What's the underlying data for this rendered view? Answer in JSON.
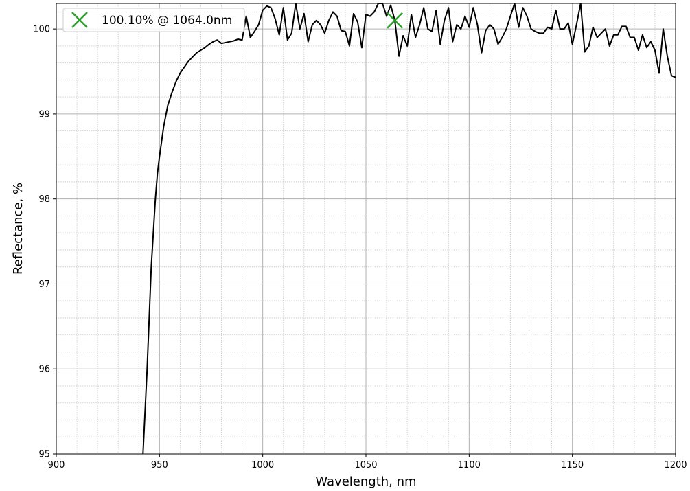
{
  "chart_data": {
    "type": "line",
    "xlabel": "Wavelength, nm",
    "ylabel": "Reflectance, %",
    "xlim": [
      900,
      1200
    ],
    "ylim": [
      95,
      100.3
    ],
    "xticks": [
      900,
      950,
      1000,
      1050,
      1100,
      1150,
      1200
    ],
    "yticks": [
      95,
      96,
      97,
      98,
      99,
      100
    ],
    "grid": {
      "major": true,
      "minor": true
    },
    "series": [
      {
        "color": "#000000",
        "x": [
          942,
          943,
          944,
          945,
          946,
          947,
          948,
          949,
          950,
          952,
          954,
          956,
          958,
          960,
          962,
          964,
          966,
          968,
          970,
          972,
          974,
          976,
          978,
          980,
          982,
          984,
          986,
          988,
          990,
          992,
          994,
          996,
          998,
          1000,
          1002,
          1004,
          1006,
          1008,
          1010,
          1012,
          1014,
          1016,
          1018,
          1020,
          1022,
          1024,
          1026,
          1028,
          1030,
          1032,
          1034,
          1036,
          1038,
          1040,
          1042,
          1044,
          1046,
          1048,
          1050,
          1052,
          1054,
          1056,
          1058,
          1060,
          1062,
          1064,
          1066,
          1068,
          1070,
          1072,
          1074,
          1076,
          1078,
          1080,
          1082,
          1084,
          1086,
          1088,
          1090,
          1092,
          1094,
          1096,
          1098,
          1100,
          1102,
          1104,
          1106,
          1108,
          1110,
          1112,
          1114,
          1116,
          1118,
          1120,
          1122,
          1124,
          1126,
          1128,
          1130,
          1132,
          1134,
          1136,
          1138,
          1140,
          1142,
          1144,
          1146,
          1148,
          1150,
          1152,
          1154,
          1156,
          1158,
          1160,
          1162,
          1164,
          1166,
          1168,
          1170,
          1172,
          1174,
          1176,
          1178,
          1180,
          1182,
          1184,
          1186,
          1188,
          1190,
          1192,
          1194,
          1196,
          1198,
          1200
        ],
        "y": [
          95.0,
          95.5,
          96.0,
          96.6,
          97.2,
          97.6,
          98.0,
          98.3,
          98.5,
          98.85,
          99.1,
          99.25,
          99.38,
          99.48,
          99.55,
          99.62,
          99.67,
          99.72,
          99.75,
          99.78,
          99.82,
          99.85,
          99.87,
          99.83,
          99.84,
          99.85,
          99.86,
          99.88,
          99.87,
          100.15,
          99.9,
          99.97,
          100.05,
          100.22,
          100.27,
          100.25,
          100.12,
          99.93,
          100.25,
          99.87,
          99.95,
          100.3,
          100.0,
          100.18,
          99.85,
          100.05,
          100.1,
          100.05,
          99.95,
          100.1,
          100.2,
          100.15,
          99.98,
          99.97,
          99.8,
          100.18,
          100.08,
          99.78,
          100.17,
          100.15,
          100.2,
          100.3,
          100.3,
          100.15,
          100.28,
          100.1,
          99.68,
          99.92,
          99.8,
          100.17,
          99.9,
          100.05,
          100.25,
          100.0,
          99.97,
          100.22,
          99.82,
          100.1,
          100.25,
          99.85,
          100.05,
          100.0,
          100.15,
          100.02,
          100.25,
          100.05,
          99.72,
          99.98,
          100.05,
          100.0,
          99.82,
          99.9,
          100.0,
          100.15,
          100.3,
          100.02,
          100.25,
          100.15,
          100.0,
          99.97,
          99.95,
          99.95,
          100.02,
          100.0,
          100.22,
          100.0,
          100.0,
          100.07,
          99.82,
          100.05,
          100.3,
          99.73,
          99.8,
          100.02,
          99.9,
          99.95,
          100.0,
          99.8,
          99.93,
          99.93,
          100.03,
          100.03,
          99.9,
          99.9,
          99.75,
          99.93,
          99.78,
          99.85,
          99.75,
          99.48,
          100.0,
          99.68,
          99.45,
          99.43
        ]
      }
    ],
    "marker": {
      "x": 1064.0,
      "y": 100.1,
      "symbol": "x",
      "color": "#2ca02c",
      "label": "100.10% @ 1064.0nm"
    },
    "legend": {
      "placement": "top-left",
      "entry": "100.10% @ 1064.0nm"
    }
  }
}
